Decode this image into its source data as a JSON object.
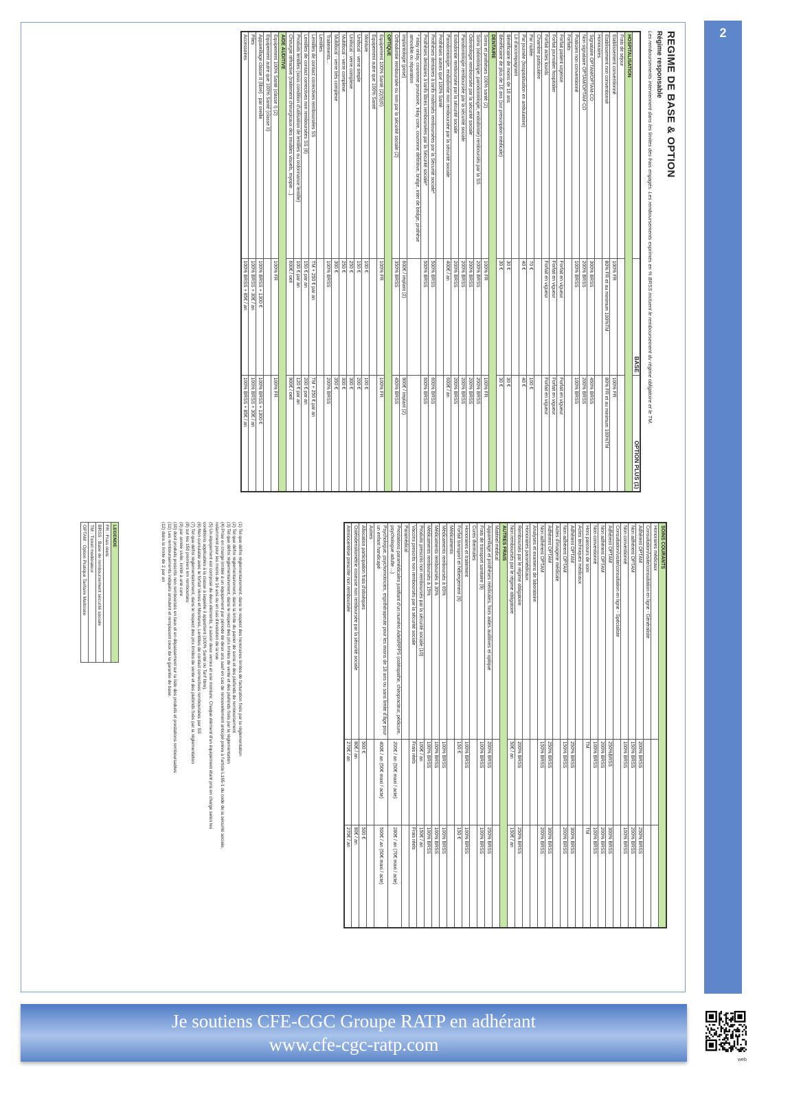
{
  "page_number": "2",
  "header": {
    "title": "REGIME DE BASE & OPTION",
    "subtitle": "Régime responsable",
    "note": "Les remboursements interviennent dans les limites des frais engagés. Les remboursements exprimés en % BRSS incluent le remboursement du régime obligatoire et le TM."
  },
  "left_table": {
    "columns": [
      "BASE",
      "OPTION PLUS (1)"
    ],
    "rows": [
      {
        "section": "HOSPITALISATION"
      },
      [
        "Frais de séjour"
      ],
      [
        "Etablissement conventionné",
        "100% FR",
        "100% FR"
      ],
      [
        "Etablissement non conventionné",
        "80% FR et au minimum 100%TM",
        "80% FR et au minimum 100%TM"
      ],
      [
        "Honoraires"
      ],
      [
        "Signataire OPTAM/OPTAM-CO",
        "300% BRSS",
        "450% BRSS"
      ],
      [
        "Non signataire OPTAM/OPTAM-CO",
        "200% BRSS",
        "200% BRSS"
      ],
      [
        "Praticien non conventionné",
        "100% BRSS",
        "100% BRSS"
      ],
      [
        "Forfaits"
      ],
      [
        "Forfait patient urgence",
        "Forfait en vigueur",
        "Forfait en vigueur"
      ],
      [
        "Forfait journalier hospitalier",
        "Forfait en vigueur",
        "Forfait en vigueur"
      ],
      [
        "Forfait actes lourds",
        "Forfait en vigueur",
        "Forfait en vigueur"
      ],
      [
        "Chambre particulière"
      ],
      [
        "Par nuitée",
        "70 €",
        "100 €"
      ],
      [
        "Par journée (hospitalisation en ambulatoire)",
        "40 €",
        "40 €"
      ],
      [
        "Lit d'accompagnant"
      ],
      [
        "Bénéficiaire de moins de 16 ans",
        "30 €",
        "30 €"
      ],
      [
        "Bénéficiaire de plus de 16 ans (sur prescription médicale)",
        "30 €",
        "30 €"
      ],
      {
        "section": "DENTAIRE"
      },
      [
        "Soins et prothèses 100% santé (2)",
        "100% FR",
        "100% FR"
      ],
      [
        "Soins (odontologie, parodontologie, endodontie) remboursés par la SS",
        "200% BRSS",
        "200% BRSS"
      ],
      [
        "Odontologie remboursée par la sécurité sociale",
        "200% BRSS",
        "200% BRSS"
      ],
      [
        "Parodontologie remboursée par la sécurité sociale",
        "200% BRSS",
        "200% BRSS"
      ],
      [
        "Endodontie remboursée par la sécurité sociale",
        "200% BRSS",
        "200% BRSS"
      ],
      [
        "Parodontologie, endodontie non remboursée par la sécurité sociale",
        "400€ / an",
        "600€ / an"
      ],
      [
        "Prothèses autres que 100% Santé"
      ],
      [
        "Prothèses dentaires à tarifs maîtrisés remboursées par la Sécurité sociale*",
        "500% BRSS",
        "600% BRSS"
      ],
      [
        "Prothèses dentaires à tarifs libres remboursées par la Sécurité sociale*",
        "500% BRSS",
        "600% BRSS"
      ],
      [
        "* inlay onlay, couronne provisoire, inlay core, couronne définitive, bridge, inter de bridge, prothèse amovible ou réparation"
      ],
      [
        "Implantologie (pose)",
        "600€ / implant (2)",
        "900€ / implant (2)"
      ],
      [
        "Orthodontie remboursée ou non par la sécurité sociale (2)",
        "350% BRSS",
        "450% BRSS"
      ],
      {
        "section": "OPTIQUE"
      },
      [
        "Equipement 100% Santé (2)(5)(6)",
        "100% FR",
        "100% FR"
      ],
      [
        "Equipement autre que 100% Santé"
      ],
      [
        "Monture",
        "100 €",
        "100 €"
      ],
      [
        "Unifocal - verre simple",
        "150 €",
        "200 €"
      ],
      [
        "Unifocal - verre complexe",
        "250 €",
        "300 €"
      ],
      [
        "Multifocal - verre complexe",
        "250 €",
        "300 €"
      ],
      [
        "Multifocal - verre très complexe",
        "300 €",
        "350 €"
      ],
      [
        "Traitements...",
        "100% BRSS",
        "200% BRSS"
      ],
      [
        "Lentilles"
      ],
      [
        "Lentilles de contact correctives remboursées SS",
        "TM + 250 € par an",
        "TM + 250 € par an"
      ],
      [
        "Lentilles de contact correctives non remboursées SS (8)",
        "150 € par an",
        "200 € par an"
      ],
      [
        "Produits lentilles (sous condition d'utilisation de lentilles ou ordonnance lentille)",
        "100 € par an",
        "120 € par an"
      ],
      [
        "Chirurgie réfractive (traitement chirurgicaux des troubles visuels, myopie ...)",
        "600€ / oeil",
        "900€ / oeil"
      ],
      {
        "section": "AIDE AUDITIVE"
      },
      [
        "Equipement 100% Santé (classe I) (2)",
        "100% FR",
        "100% FR"
      ],
      [
        "Equipement autre que 100% Santé (classe II)"
      ],
      [
        "Appareillage classe II (libre) - par oreille",
        "100% BRSS + 1300 €",
        "100% BRSS + 1300 €"
      ],
      [
        "Piles",
        "100% BRSS + 30€ / an",
        "100% BRSS + 30€ / an"
      ],
      [
        "Accessoires",
        "100% BRSS + 85€ / an",
        "100% BRSS + 85€ / an"
      ]
    ]
  },
  "right_table": {
    "rows": [
      {
        "section": "SOINS COURANTS"
      },
      [
        "Honoraires médicaux"
      ],
      [
        "Consultation/visite/consultation en ligne - Généraliste"
      ],
      [
        "Adhérent OPTAM",
        "200% BRSS",
        "250% BRSS"
      ],
      [
        "Non adhérent OPTAM",
        "150% BRSS",
        "200% BRSS"
      ],
      [
        "Non conventionné",
        "100% BRSS",
        "100% BRSS"
      ],
      [
        "Consultation/visite/consultation en ligne - Spécialiste"
      ],
      [
        "Adhérent OPTAM",
        "250%BRSS",
        "300% BRSS"
      ],
      [
        "Non adhérent OPTAM",
        "200% BRSS",
        "200% BRSS"
      ],
      [
        "Non conventionné",
        "100% BRSS",
        "100% BRSS"
      ],
      [
        "Hors parcours de soin",
        "TM",
        "TM"
      ],
      [
        "Actes techniques médicaux"
      ],
      [
        "Adhérent OPTAM",
        "250% BRSS",
        "300% BRSS"
      ],
      [
        "Non adhérent OPTAM",
        "150% BRSS",
        "200% BRSS"
      ],
      [
        "Actes d'imagerie médicale"
      ],
      [
        "Adhérent OPTAM",
        "250% BRSS",
        "300% BRSS"
      ],
      [
        "Non adhérent OPTAM",
        "150% BRSS",
        "200% BRSS"
      ],
      [
        "Analyses et examens de laboratoire"
      ],
      [
        "Honoraires paramédicaux"
      ],
      [
        "Remboursés par le régime obligatoire",
        "200% BRSS",
        "250% BRSS"
      ],
      [
        "Non remboursés par le régime obligatoire",
        "50€ / an",
        "150€ / an"
      ],
      {
        "section": "AUTRES FRAIS"
      },
      [
        "Matériel médical"
      ],
      [
        "Appareillage et prothèses médicales, hors aides auditives et optique",
        "200% BRSS",
        "250% BRSS"
      ],
      [
        "Frais de transport sanitaire (9)",
        "100% BRSS",
        "100% BRSS"
      ],
      [
        "Cures thermales"
      ],
      [
        "Honoraires et traitement",
        "100% BRSS",
        "100% BRSS"
      ],
      [
        "Forfait transport et hébergement (9)",
        "150 €",
        "150 €"
      ],
      [
        "Médicaments"
      ],
      [
        "Médicaments remboursés à 65%",
        "100% BRSS",
        "100% BRSS"
      ],
      [
        "Médicaments remboursés à 30%",
        "100% BRSS",
        "100% BRSS"
      ],
      [
        "Médicaments remboursés à 15%",
        "100% BRSS",
        "100% BRSS"
      ],
      [
        "Produits prescrits non remboursés par la sécurité sociale (10)",
        "100€ / an",
        "150€ / an"
      ],
      [
        "Vaccins prescrits non remboursés par la sécurité sociale",
        "Frais réels",
        "Frais réels"
      ],
      [
        "Paramédical"
      ],
      [
        "Prestations paramédicales justifiant d'un numéro Adeli/RPPS (ostéopathe, chiropracteur, pédicure, psychologue adulte ...)",
        "200€ / an (50€ maxi / acte)",
        "280€ / an (70€ maxi / acte)"
      ],
      [
        "Psychologue, psychomotricien, ergothérapeute pour les moins de 18 ans ou sans limite d'âge pour un enfant handicapé",
        "400€ / an (50€ maxi / acte)",
        "500€ / an (50€ maxi / acte)"
      ],
      [
        "Autres"
      ],
      [
        "Allocation participation frais d'obsèques",
        "500 €",
        "500 €"
      ],
      [
        "Ostéodensitométrie osseuse non remboursée par la sécurité sociale",
        "80€ / an",
        "80€ / an"
      ],
      [
        "Amniocentèse prescrite non remboursée",
        "270€ / an",
        "270€ / an"
      ]
    ]
  },
  "footnotes": [
    "(1) Tel que défini réglementairement, dans le respect des honoraires limites de facturation fixés par la réglementation",
    "(2) Tel que défini réglementairement, dans la limite du panier de soins et des plafonds de remboursement",
    "(3) Tel que défini réglementairement, dans le respect des prix limites de vente et des plafonds fixés par la réglementation",
    "(4) Prise en charge limitée à un équipement par période de deux ans sauf en cas de renouvellement anticipé prévu à l'article L165-1 du code de la sécurité sociale,",
    "notamment pour les moins de 16 ans ou en cas d'évolution de la vue",
    "(5) Un équipement est composé de deux éléments, à savoir deux verres et une monture. Chaque élément d'un équipement étant pris en charge selon les",
    "conditions applicables à la classe à laquelle il appartient (100% Santé ou Tarif libre).",
    "(6) Non cumulable avec le forfait Verres et Montures, Lentilles de contact correctives remboursées par SS",
    "(7) Tel que défini réglementairement, dans le respect des prix limites de vente et des plafonds fixés par la réglementation",
    "(8) sur les 150 premiers km remboursés",
    "(9) par année civile, limité à une cure",
    "(10) dont produits prescrits non remboursés en taux et en dépassement sur la liste des produits et prestations remboursables",
    "(11) Les remboursements indiqués annulent et remplacent ceux de la garantie de base.",
    "(12) dans la limite de 2 par an"
  ],
  "legend": {
    "title": "LEGENDE",
    "items": [
      "FR : Frais réels",
      "BRSS : Base de remboursement sécurité sociale",
      "TM : Ticket modérateur",
      "OPTAM : Option Pratique Tarifaire Maîtrisée"
    ]
  },
  "banner": {
    "line1": "Je soutiens CFE-CGC Groupe RATP en adhérant",
    "line2": "www.cfe-cgc-ratp.com"
  },
  "qr_label": "web"
}
